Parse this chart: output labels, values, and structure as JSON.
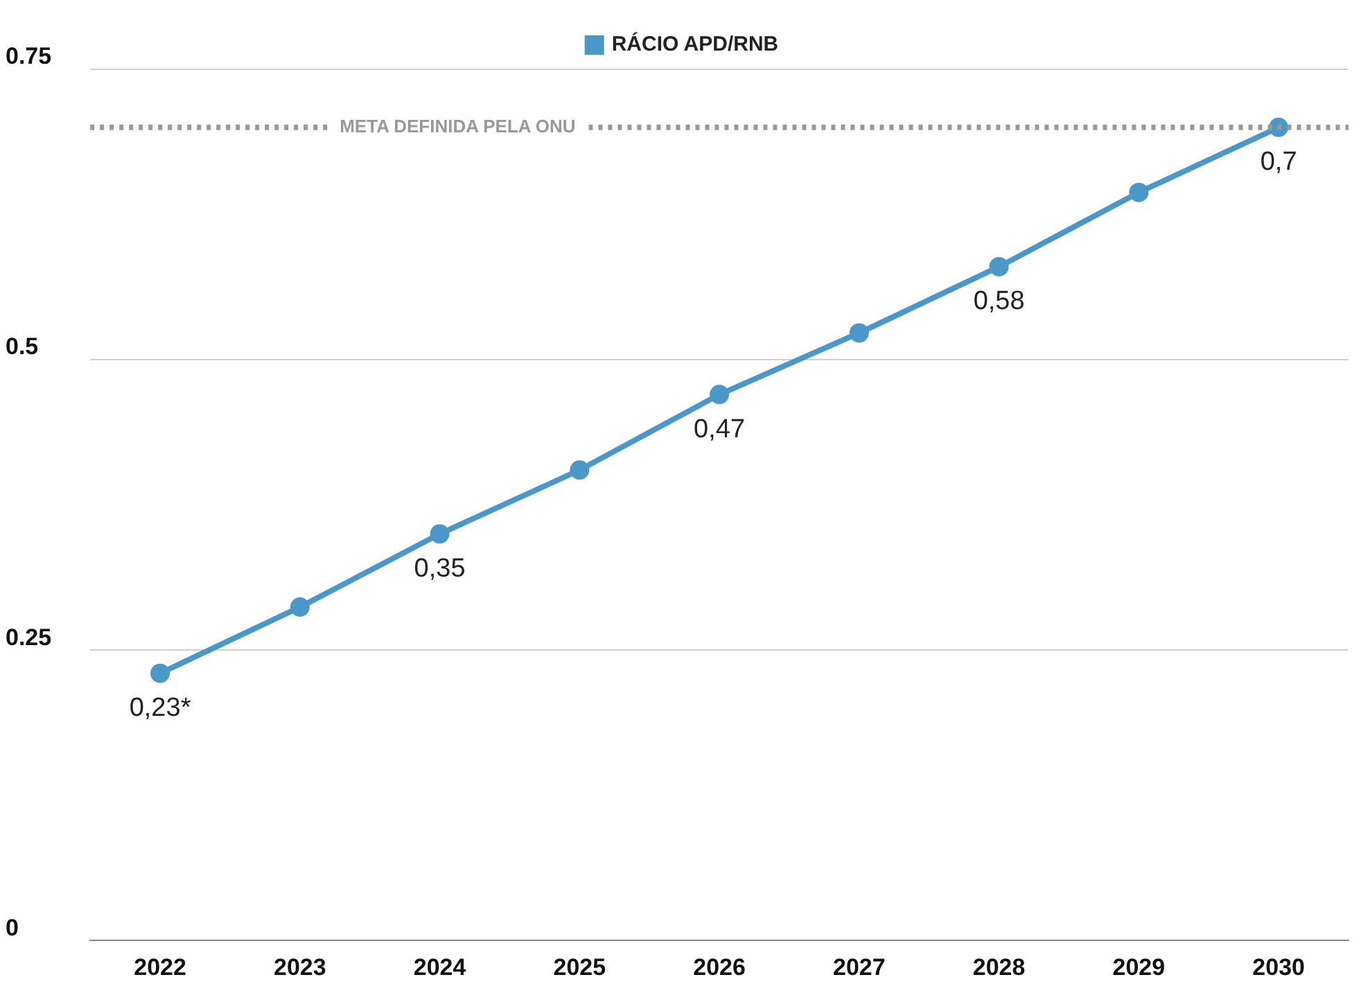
{
  "chart_data": {
    "type": "line",
    "categories": [
      "2022",
      "2023",
      "2024",
      "2025",
      "2026",
      "2027",
      "2028",
      "2029",
      "2030"
    ],
    "series": [
      {
        "name": "RÁCIO APD/RNB",
        "color": "#4a98c9",
        "values": [
          0.23,
          0.287,
          0.35,
          0.405,
          0.47,
          0.523,
          0.58,
          0.644,
          0.7
        ],
        "value_labels": [
          "0,23*",
          null,
          "0,35",
          null,
          "0,47",
          null,
          "0,58",
          null,
          "0,7"
        ]
      }
    ],
    "ylim": [
      0,
      0.75
    ],
    "yticks": [
      0,
      0.25,
      0.5,
      0.75
    ],
    "grid": "y",
    "legend": "top",
    "marker": "circle",
    "line_style": "solid",
    "ref_lines": [
      {
        "axis": "y",
        "value": 0.7,
        "label": "META DEFINIDA PELA ONU",
        "color": "#999999",
        "line_style": "dotted"
      }
    ]
  }
}
